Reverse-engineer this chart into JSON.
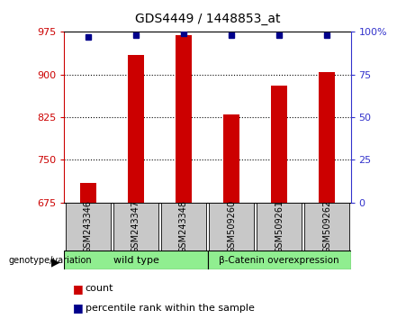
{
  "title": "GDS4449 / 1448853_at",
  "categories": [
    "GSM243346",
    "GSM243347",
    "GSM243348",
    "GSM509260",
    "GSM509261",
    "GSM509262"
  ],
  "bar_values": [
    710,
    935,
    970,
    830,
    880,
    905
  ],
  "percentile_values": [
    97,
    98,
    99,
    98,
    98,
    98
  ],
  "bar_color": "#cc0000",
  "dot_color": "#00008b",
  "ylim_left": [
    675,
    975
  ],
  "ylim_right": [
    0,
    100
  ],
  "yticks_left": [
    675,
    750,
    825,
    900,
    975
  ],
  "yticks_right": [
    0,
    25,
    50,
    75,
    100
  ],
  "ytick_right_labels": [
    "0",
    "25",
    "50",
    "75",
    "100%"
  ],
  "grid_values": [
    750,
    825,
    900
  ],
  "group1_label": "wild type",
  "group2_label": "β-Catenin overexpression",
  "group_bg_color": "#90ee90",
  "tick_label_bg": "#c8c8c8",
  "legend_count_label": "count",
  "legend_pct_label": "percentile rank within the sample",
  "genotype_label": "genotype/variation",
  "left_axis_color": "#cc0000",
  "right_axis_color": "#3333cc",
  "bar_width": 0.35,
  "fig_width": 4.61,
  "fig_height": 3.54,
  "dpi": 100
}
